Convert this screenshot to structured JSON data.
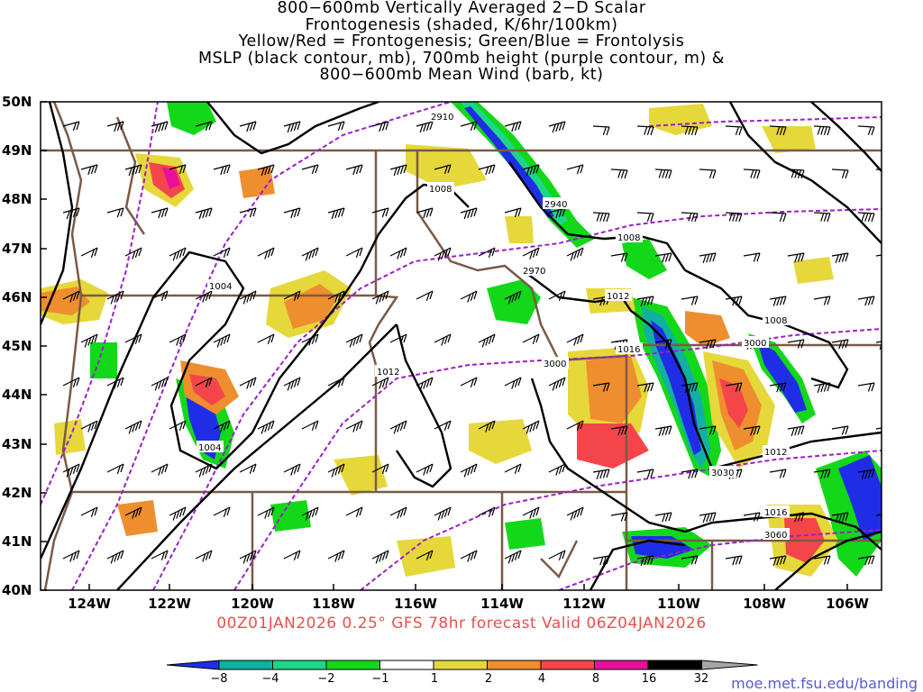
{
  "title_lines": [
    "800−600mb Vertically Averaged 2−D Scalar",
    "Frontogenesis (shaded, K/6hr/100km)",
    "Yellow/Red = Frontogenesis;  Green/Blue = Frontolysis",
    "MSLP (black contour, mb), 700mb height (purple contour, m) &",
    "800−600mb Mean Wind (barb, kt)"
  ],
  "lat_labels": [
    "50N",
    "49N",
    "48N",
    "47N",
    "46N",
    "45N",
    "44N",
    "43N",
    "42N",
    "41N",
    "40N"
  ],
  "lon_labels": [
    "124W",
    "122W",
    "120W",
    "118W",
    "116W",
    "114W",
    "112W",
    "110W",
    "108W",
    "106W"
  ],
  "valid_text": "00Z01JAN2026 0.25° GFS 78hr forecast Valid 06Z04JAN2026",
  "credit": "moe.met.fsu.edu/banding",
  "colorbar": {
    "labels": [
      "−8",
      "−4",
      "−2",
      "−1",
      "1",
      "2",
      "4",
      "8",
      "16",
      "32"
    ],
    "colors": [
      "#1f2ee6",
      "#12b0a0",
      "#1ed68a",
      "#13d81a",
      "#ffffff",
      "#e6d83a",
      "#ef8e2e",
      "#f4464a",
      "#e8109a",
      "#000000",
      "#a6a6a6"
    ]
  },
  "mslp_labels": [
    "1008",
    "1008",
    "1004",
    "1012",
    "1016",
    "1008",
    "1012",
    "1004",
    "1012",
    "1016"
  ],
  "height_labels": [
    "2910",
    "2940",
    "2970",
    "3000",
    "3000",
    "3030",
    "3060"
  ],
  "colors": {
    "mslp": "#000000",
    "height": "#9a20c8",
    "borders": "#7a5a46"
  }
}
